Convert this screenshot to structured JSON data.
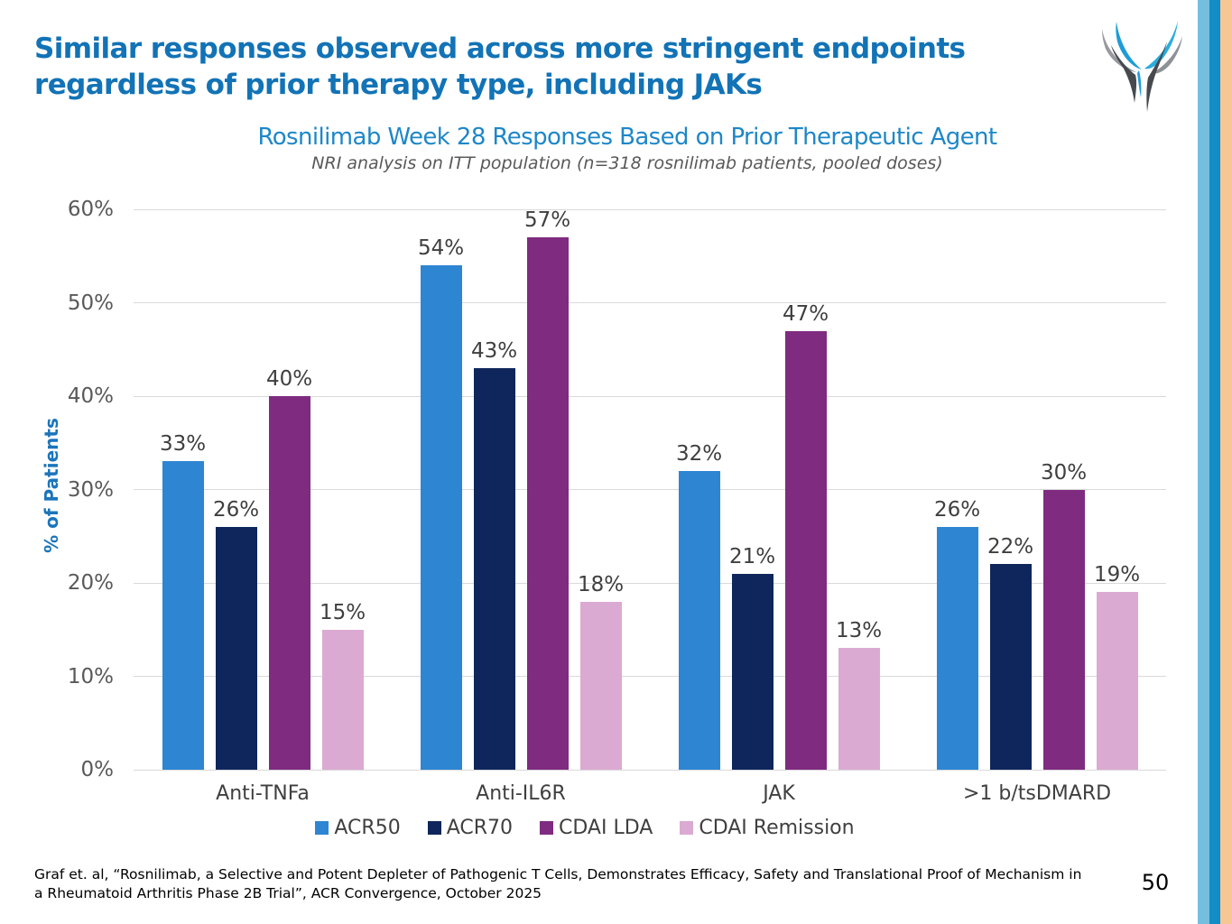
{
  "header": {
    "title_line1": "Similar responses observed across more stringent endpoints",
    "title_line2": "regardless of prior therapy type, including JAKs"
  },
  "chart_data": {
    "type": "bar",
    "title": "Rosnilimab Week 28 Responses Based on Prior Therapeutic Agent",
    "subtitle": "NRI analysis on ITT population (n=318 rosnilimab patients, pooled doses)",
    "ylabel": "% of Patients",
    "ylim": [
      0,
      60
    ],
    "ytick_interval": 10,
    "ytick_labels": [
      "0%",
      "10%",
      "20%",
      "30%",
      "40%",
      "50%",
      "60%"
    ],
    "grid": true,
    "legend_position": "bottom",
    "categories": [
      "Anti-TNFa",
      "Anti-IL6R",
      "JAK",
      ">1 b/tsDMARD"
    ],
    "series": [
      {
        "name": "ACR50",
        "color": "#2E85D2",
        "values": [
          33,
          54,
          32,
          26
        ]
      },
      {
        "name": "ACR70",
        "color": "#0F265C",
        "values": [
          26,
          43,
          21,
          22
        ]
      },
      {
        "name": "CDAI LDA",
        "color": "#7E2B80",
        "values": [
          40,
          57,
          47,
          30
        ]
      },
      {
        "name": "CDAI Remission",
        "color": "#DBAAD2",
        "values": [
          15,
          18,
          13,
          19
        ]
      }
    ],
    "data_label_suffix": "%"
  },
  "footer": {
    "citation_line1": "Graf et. al, “Rosnilimab, a Selective and Potent Depleter of Pathogenic T Cells, Demonstrates Efficacy, Safety and Translational Proof of Mechanism in",
    "citation_line2": "a Rheumatoid Arthritis Phase 2B Trial”, ACR Convergence, October 2025",
    "page_number": "50"
  },
  "icons": {
    "logo": "v-wings-logo"
  },
  "theme": {
    "title_color": "#1273B6",
    "chart_title_color": "#1E87C8",
    "subtitle_color": "#595959",
    "axis_text_color": "#595959",
    "label_color": "#3F3F3F",
    "gridline_color": "#D9D9D9",
    "ylabel_color": "#1B75BB",
    "stripe_light_blue": "#74BFDE",
    "stripe_dark_blue": "#128DC5",
    "stripe_peach": "#F6C795",
    "logo_blue_left": "#1E9CD8",
    "logo_blue_right": "#29ADDE",
    "logo_gray_light": "#97999E",
    "logo_gray_dark": "#46494E"
  }
}
